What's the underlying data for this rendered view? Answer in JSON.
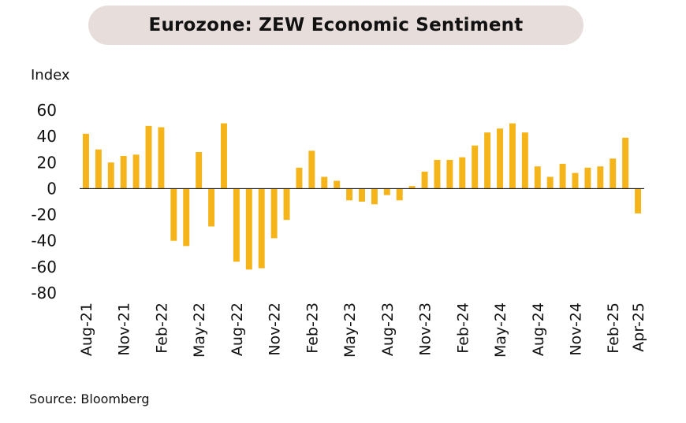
{
  "source": "Source: Bloomberg",
  "chart_data": {
    "type": "bar",
    "title": "Eurozone: ZEW Economic Sentiment",
    "ylabel": "Index",
    "xlabel": "",
    "ylim": [
      -80,
      60
    ],
    "yticks": [
      60,
      40,
      20,
      0,
      -20,
      -40,
      -60,
      -80
    ],
    "bar_color": "#f4b41a",
    "grid": false,
    "categories": [
      "Aug-21",
      "Sep-21",
      "Oct-21",
      "Nov-21",
      "Dec-21",
      "Jan-22",
      "Feb-22",
      "Mar-22",
      "Apr-22",
      "May-22",
      "Jun-22",
      "Jul-22",
      "Aug-22",
      "Sep-22",
      "Oct-22",
      "Nov-22",
      "Dec-22",
      "Jan-23",
      "Feb-23",
      "Mar-23",
      "Apr-23",
      "May-23",
      "Jun-23",
      "Jul-23",
      "Aug-23",
      "Sep-23",
      "Oct-23",
      "Nov-23",
      "Dec-23",
      "Jan-24",
      "Feb-24",
      "Mar-24",
      "Apr-24",
      "May-24",
      "Jun-24",
      "Jul-24",
      "Aug-24",
      "Sep-24",
      "Oct-24",
      "Nov-24",
      "Dec-24",
      "Jan-25",
      "Feb-25",
      "Mar-25",
      "Apr-25"
    ],
    "values": [
      42,
      30,
      20,
      25,
      26,
      48,
      47,
      -40,
      -44,
      28,
      -29,
      50,
      -56,
      -62,
      -61,
      -38,
      -24,
      16,
      29,
      9,
      6,
      -9,
      -10,
      -12,
      -5,
      -9,
      2,
      13,
      22,
      22,
      24,
      33,
      43,
      46,
      50,
      43,
      17,
      9,
      19,
      12,
      16,
      17,
      23,
      39,
      -19
    ],
    "tick_labels": [
      "Aug-21",
      "Nov-21",
      "Feb-22",
      "May-22",
      "Aug-22",
      "Nov-22",
      "Feb-23",
      "May-23",
      "Aug-23",
      "Nov-23",
      "Feb-24",
      "May-24",
      "Aug-24",
      "Nov-24",
      "Feb-25",
      "Apr-25"
    ]
  }
}
